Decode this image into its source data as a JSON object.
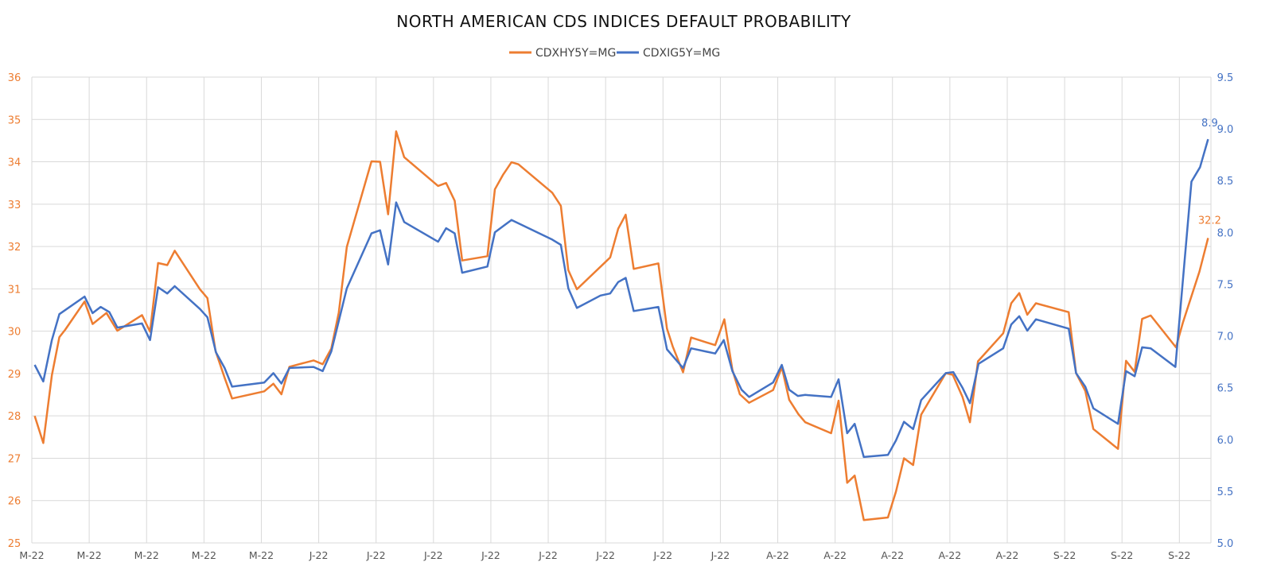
{
  "chart_data": {
    "type": "line",
    "title": "NORTH AMERICAN CDS INDICES DEFAULT PROBABILITY",
    "xlabel": "",
    "ylabel_left": "",
    "ylabel_right": "",
    "x_tick_labels": [
      "M-22",
      "M-22",
      "M-22",
      "M-22",
      "M-22",
      "J-22",
      "J-22",
      "J-22",
      "J-22",
      "J-22",
      "J-22",
      "J-22",
      "J-22",
      "A-22",
      "A-22",
      "A-22",
      "A-22",
      "A-22",
      "S-22",
      "S-22",
      "S-22"
    ],
    "xlim": [
      0,
      20.55
    ],
    "ylim_left": [
      25,
      36
    ],
    "ylim_right": [
      5.0,
      9.5
    ],
    "y_ticks_left": [
      "25",
      "26",
      "27",
      "28",
      "29",
      "30",
      "31",
      "32",
      "33",
      "34",
      "35",
      "36"
    ],
    "y_ticks_right": [
      "5.0",
      "5.5",
      "6.0",
      "6.5",
      "7.0",
      "7.5",
      "8.0",
      "8.5",
      "9.0",
      "9.5"
    ],
    "grid": true,
    "legend_position": "top-center",
    "series": [
      {
        "name": "CDXHY5Y=MG",
        "axis": "left",
        "color": "#ED7D31",
        "end_label": "32.2",
        "points": [
          [
            0.05,
            28.0
          ],
          [
            0.2,
            27.36
          ],
          [
            0.35,
            28.96
          ],
          [
            0.48,
            29.86
          ],
          [
            0.58,
            30.03
          ],
          [
            0.92,
            30.7
          ],
          [
            1.06,
            30.17
          ],
          [
            1.3,
            30.43
          ],
          [
            1.49,
            30.01
          ],
          [
            1.92,
            30.38
          ],
          [
            2.06,
            29.99
          ],
          [
            2.2,
            31.61
          ],
          [
            2.36,
            31.56
          ],
          [
            2.49,
            31.9
          ],
          [
            2.93,
            30.99
          ],
          [
            3.06,
            30.78
          ],
          [
            3.2,
            29.54
          ],
          [
            3.36,
            28.9
          ],
          [
            3.49,
            28.41
          ],
          [
            4.05,
            28.58
          ],
          [
            4.21,
            28.76
          ],
          [
            4.35,
            28.51
          ],
          [
            4.49,
            29.16
          ],
          [
            4.91,
            29.31
          ],
          [
            5.07,
            29.22
          ],
          [
            5.22,
            29.59
          ],
          [
            5.35,
            30.44
          ],
          [
            5.49,
            31.99
          ],
          [
            5.92,
            34.01
          ],
          [
            6.07,
            34.0
          ],
          [
            6.21,
            32.76
          ],
          [
            6.35,
            34.72
          ],
          [
            6.49,
            34.11
          ],
          [
            7.08,
            33.43
          ],
          [
            7.22,
            33.5
          ],
          [
            7.37,
            33.08
          ],
          [
            7.5,
            31.67
          ],
          [
            7.94,
            31.77
          ],
          [
            8.07,
            33.35
          ],
          [
            8.21,
            33.69
          ],
          [
            8.36,
            33.99
          ],
          [
            8.48,
            33.94
          ],
          [
            9.07,
            33.27
          ],
          [
            9.22,
            32.96
          ],
          [
            9.35,
            31.44
          ],
          [
            9.5,
            30.99
          ],
          [
            10.08,
            31.74
          ],
          [
            10.22,
            32.42
          ],
          [
            10.35,
            32.75
          ],
          [
            10.49,
            31.47
          ],
          [
            10.92,
            31.6
          ],
          [
            11.07,
            30.06
          ],
          [
            11.17,
            29.64
          ],
          [
            11.35,
            29.03
          ],
          [
            11.49,
            29.85
          ],
          [
            11.91,
            29.67
          ],
          [
            12.07,
            30.28
          ],
          [
            12.21,
            29.09
          ],
          [
            12.34,
            28.51
          ],
          [
            12.5,
            28.31
          ],
          [
            12.92,
            28.61
          ],
          [
            13.07,
            29.15
          ],
          [
            13.2,
            28.38
          ],
          [
            13.36,
            28.04
          ],
          [
            13.48,
            27.85
          ],
          [
            13.93,
            27.59
          ],
          [
            14.06,
            28.36
          ],
          [
            14.21,
            26.42
          ],
          [
            14.34,
            26.59
          ],
          [
            14.5,
            25.54
          ],
          [
            14.92,
            25.6
          ],
          [
            15.06,
            26.21
          ],
          [
            15.2,
            27.0
          ],
          [
            15.36,
            26.84
          ],
          [
            15.5,
            28.03
          ],
          [
            15.93,
            29.01
          ],
          [
            16.05,
            28.97
          ],
          [
            16.22,
            28.45
          ],
          [
            16.35,
            27.85
          ],
          [
            16.49,
            29.29
          ],
          [
            16.93,
            29.95
          ],
          [
            17.07,
            30.66
          ],
          [
            17.21,
            30.9
          ],
          [
            17.35,
            30.39
          ],
          [
            17.5,
            30.66
          ],
          [
            18.07,
            30.45
          ],
          [
            18.2,
            29.01
          ],
          [
            18.36,
            28.59
          ],
          [
            18.5,
            27.69
          ],
          [
            18.93,
            27.22
          ],
          [
            19.07,
            29.3
          ],
          [
            19.22,
            29.04
          ],
          [
            19.35,
            30.29
          ],
          [
            19.5,
            30.37
          ],
          [
            19.94,
            29.62
          ],
          [
            20.06,
            30.2
          ],
          [
            20.35,
            31.41
          ],
          [
            20.5,
            32.2
          ]
        ]
      },
      {
        "name": "CDXIG5Y=MG",
        "axis": "right",
        "color": "#4472C4",
        "end_label": "8.9",
        "points": [
          [
            0.05,
            6.72
          ],
          [
            0.2,
            6.56
          ],
          [
            0.35,
            6.96
          ],
          [
            0.48,
            7.21
          ],
          [
            0.92,
            7.38
          ],
          [
            1.06,
            7.22
          ],
          [
            1.2,
            7.28
          ],
          [
            1.35,
            7.23
          ],
          [
            1.49,
            7.08
          ],
          [
            1.92,
            7.12
          ],
          [
            2.06,
            6.96
          ],
          [
            2.2,
            7.47
          ],
          [
            2.36,
            7.41
          ],
          [
            2.49,
            7.48
          ],
          [
            2.93,
            7.26
          ],
          [
            3.06,
            7.18
          ],
          [
            3.21,
            6.84
          ],
          [
            3.36,
            6.69
          ],
          [
            3.49,
            6.51
          ],
          [
            4.05,
            6.55
          ],
          [
            4.21,
            6.64
          ],
          [
            4.35,
            6.54
          ],
          [
            4.49,
            6.69
          ],
          [
            4.91,
            6.7
          ],
          [
            5.07,
            6.66
          ],
          [
            5.22,
            6.85
          ],
          [
            5.49,
            7.46
          ],
          [
            5.92,
            7.99
          ],
          [
            6.07,
            8.02
          ],
          [
            6.21,
            7.69
          ],
          [
            6.35,
            8.29
          ],
          [
            6.49,
            8.1
          ],
          [
            7.08,
            7.91
          ],
          [
            7.22,
            8.04
          ],
          [
            7.37,
            7.99
          ],
          [
            7.5,
            7.61
          ],
          [
            7.94,
            7.67
          ],
          [
            8.07,
            8.0
          ],
          [
            8.36,
            8.12
          ],
          [
            9.07,
            7.93
          ],
          [
            9.22,
            7.88
          ],
          [
            9.35,
            7.46
          ],
          [
            9.5,
            7.27
          ],
          [
            9.91,
            7.39
          ],
          [
            10.08,
            7.41
          ],
          [
            10.22,
            7.52
          ],
          [
            10.35,
            7.56
          ],
          [
            10.49,
            7.24
          ],
          [
            10.92,
            7.28
          ],
          [
            11.07,
            6.87
          ],
          [
            11.35,
            6.69
          ],
          [
            11.49,
            6.88
          ],
          [
            11.91,
            6.83
          ],
          [
            12.06,
            6.96
          ],
          [
            12.21,
            6.66
          ],
          [
            12.37,
            6.48
          ],
          [
            12.5,
            6.41
          ],
          [
            12.92,
            6.55
          ],
          [
            13.07,
            6.72
          ],
          [
            13.2,
            6.48
          ],
          [
            13.35,
            6.42
          ],
          [
            13.48,
            6.43
          ],
          [
            13.93,
            6.41
          ],
          [
            14.06,
            6.58
          ],
          [
            14.21,
            6.06
          ],
          [
            14.34,
            6.15
          ],
          [
            14.5,
            5.83
          ],
          [
            14.92,
            5.85
          ],
          [
            15.06,
            5.99
          ],
          [
            15.2,
            6.17
          ],
          [
            15.36,
            6.1
          ],
          [
            15.5,
            6.38
          ],
          [
            15.93,
            6.64
          ],
          [
            16.06,
            6.65
          ],
          [
            16.22,
            6.5
          ],
          [
            16.35,
            6.35
          ],
          [
            16.5,
            6.73
          ],
          [
            16.93,
            6.88
          ],
          [
            17.07,
            7.11
          ],
          [
            17.21,
            7.19
          ],
          [
            17.35,
            7.05
          ],
          [
            17.5,
            7.16
          ],
          [
            18.07,
            7.07
          ],
          [
            18.2,
            6.64
          ],
          [
            18.36,
            6.51
          ],
          [
            18.5,
            6.3
          ],
          [
            18.93,
            6.15
          ],
          [
            19.07,
            6.66
          ],
          [
            19.22,
            6.61
          ],
          [
            19.35,
            6.89
          ],
          [
            19.5,
            6.88
          ],
          [
            19.93,
            6.7
          ],
          [
            20.21,
            8.49
          ],
          [
            20.36,
            8.63
          ],
          [
            20.5,
            8.9
          ]
        ]
      }
    ]
  }
}
